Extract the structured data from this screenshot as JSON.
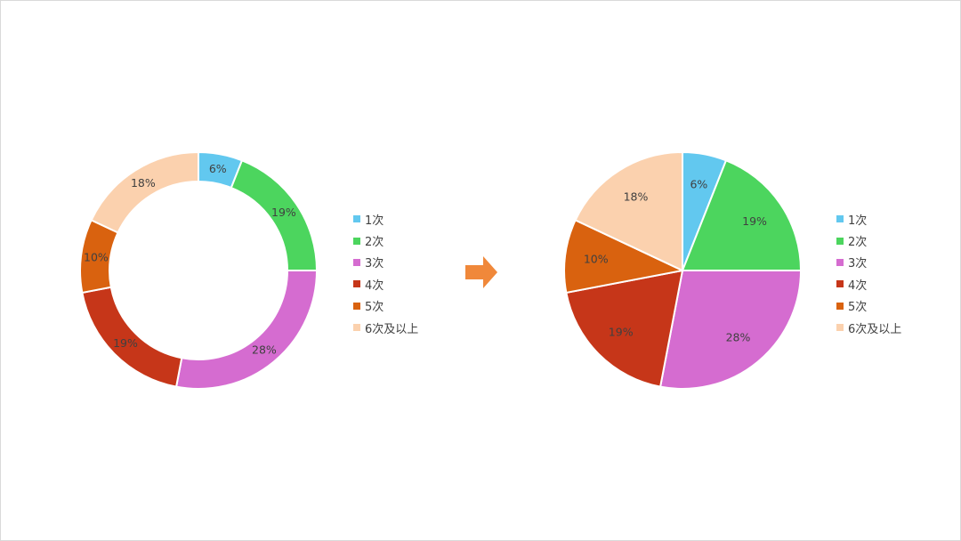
{
  "chart_data": [
    {
      "type": "donut",
      "categories": [
        "1次",
        "2次",
        "3次",
        "4次",
        "5次",
        "6次及以上"
      ],
      "values": [
        6,
        19,
        28,
        19,
        10,
        18
      ],
      "labels": [
        "6%",
        "19%",
        "28%",
        "19%",
        "10%",
        "18%"
      ],
      "legend_position": "right"
    },
    {
      "type": "pie",
      "categories": [
        "1次",
        "2次",
        "3次",
        "4次",
        "5次",
        "6次及以上"
      ],
      "values": [
        6,
        19,
        28,
        19,
        10,
        18
      ],
      "labels": [
        "6%",
        "19%",
        "28%",
        "19%",
        "10%",
        "18%"
      ],
      "legend_position": "right"
    }
  ],
  "colors": [
    "#62c8ef",
    "#4cd55e",
    "#d56cd0",
    "#c63619",
    "#d9620f",
    "#fbd1ae"
  ],
  "arrow": {
    "icon": "right-arrow-icon",
    "color": "#f0883a"
  }
}
